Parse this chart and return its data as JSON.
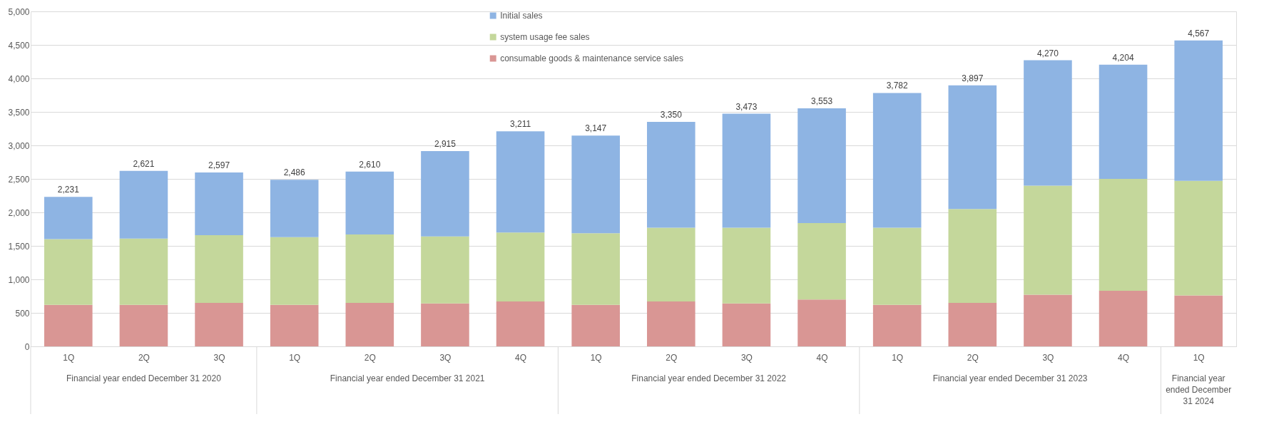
{
  "chart_data": {
    "type": "bar",
    "stacked": true,
    "categories": [
      "1Q",
      "2Q",
      "3Q",
      "1Q",
      "2Q",
      "3Q",
      "4Q",
      "1Q",
      "2Q",
      "3Q",
      "4Q",
      "1Q",
      "2Q",
      "3Q",
      "4Q",
      "1Q"
    ],
    "series": [
      {
        "name": "consumable goods & maintenance service sales",
        "color": "#d99694",
        "values": [
          620,
          620,
          650,
          620,
          650,
          640,
          670,
          620,
          670,
          640,
          700,
          620,
          650,
          770,
          830,
          760
        ]
      },
      {
        "name": "system usage fee sales",
        "color": "#c4d79b",
        "values": [
          980,
          990,
          1010,
          1010,
          1020,
          1000,
          1030,
          1070,
          1100,
          1130,
          1140,
          1150,
          1400,
          1630,
          1670,
          1710
        ]
      },
      {
        "name": "Initial sales",
        "color": "#8eb4e3",
        "values": [
          631,
          1011,
          937,
          856,
          940,
          1275,
          1511,
          1457,
          1580,
          1703,
          1713,
          2012,
          1847,
          1870,
          1704,
          2097
        ]
      }
    ],
    "totals": [
      "2,231",
      "2,621",
      "2,597",
      "2,486",
      "2,610",
      "2,915",
      "3,211",
      "3,147",
      "3,350",
      "3,473",
      "3,553",
      "3,782",
      "3,897",
      "4,270",
      "4,204",
      "4,567"
    ],
    "annotations": [
      "Financial year ended December 31 2020",
      "Financial year ended December 31 2021",
      "Financial year ended December 31 2022",
      "Financial year ended December 31 2023",
      "Financial year ended December 31 2024"
    ],
    "ylim": [
      0,
      5000
    ],
    "yticks": [
      {
        "value": 0,
        "label": "0"
      },
      {
        "value": 500,
        "label": "500"
      },
      {
        "value": 1000,
        "label": "1,000"
      },
      {
        "value": 1500,
        "label": "1,500"
      },
      {
        "value": 2000,
        "label": "2,000"
      },
      {
        "value": 2500,
        "label": "2,500"
      },
      {
        "value": 3000,
        "label": "3,000"
      },
      {
        "value": 3500,
        "label": "3,500"
      },
      {
        "value": 4000,
        "label": "4,000"
      },
      {
        "value": 4500,
        "label": "4,500"
      },
      {
        "value": 5000,
        "label": "5,000"
      }
    ],
    "grid": "y",
    "legend": "top"
  }
}
